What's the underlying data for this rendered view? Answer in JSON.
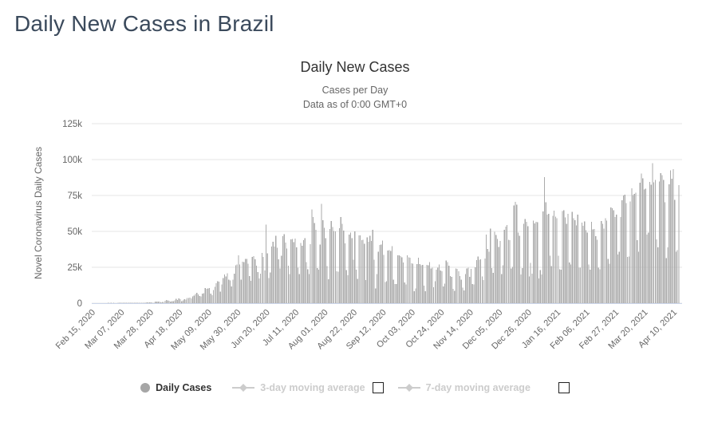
{
  "page": {
    "title": "Daily New Cases in Brazil"
  },
  "chart": {
    "title": "Daily New Cases",
    "subtitle_line1": "Cases per Day",
    "subtitle_line2": "Data as of 0:00 GMT+0",
    "y_axis_title": "Novel Coronavirus Daily Cases",
    "legend": {
      "daily_cases_label": "Daily Cases",
      "ma3_label": "3-day moving average",
      "ma7_label": "7-day moving average"
    },
    "colors": {
      "bar": "#aaaaaa",
      "grid": "#e6e6e6",
      "axis_line": "#ccd6eb",
      "tick_text": "#666666",
      "axis_title_text": "#666666",
      "title_text": "#333333",
      "page_title_text": "#3b4a5c",
      "disabled_legend": "#cccccc",
      "legend_marker": "#a6a6a6"
    }
  },
  "chart_data": {
    "type": "bar",
    "title": "Daily New Cases",
    "subtitle": "Cases per Day — Data as of 0:00 GMT+0",
    "xlabel": "",
    "ylabel": "Novel Coronavirus Daily Cases",
    "ylim": [
      0,
      130000
    ],
    "grid": true,
    "legend_position": "bottom",
    "start_date": "2020-02-15",
    "x_tick_interval_days": 21,
    "x_tick_labels": [
      "Feb 15, 2020",
      "Mar 07, 2020",
      "Mar 28, 2020",
      "Apr 18, 2020",
      "May 09, 2020",
      "May 30, 2020",
      "Jun 20, 2020",
      "Jul 11, 2020",
      "Aug 01, 2020",
      "Aug 22, 2020",
      "Sep 12, 2020",
      "Oct 03, 2020",
      "Oct 24, 2020",
      "Nov 14, 2020",
      "Dec 05, 2020",
      "Dec 26, 2020",
      "Jan 16, 2021",
      "Feb 06, 2021",
      "Feb 27, 2021",
      "Mar 20, 2021",
      "Apr 10, 2021"
    ],
    "y_ticks": [
      "0",
      "25k",
      "50k",
      "75k",
      "100k",
      "125k"
    ],
    "y_tick_values": [
      0,
      25000,
      50000,
      75000,
      100000,
      125000
    ],
    "series": [
      {
        "name": "Daily Cases",
        "values": [
          0,
          0,
          0,
          0,
          0,
          0,
          0,
          0,
          0,
          0,
          0,
          1,
          0,
          1,
          0,
          2,
          0,
          0,
          1,
          3,
          5,
          6,
          5,
          6,
          9,
          18,
          27,
          36,
          25,
          70,
          39,
          57,
          137,
          186,
          283,
          224,
          167,
          345,
          310,
          482,
          502,
          486,
          487,
          352,
          323,
          1138,
          1119,
          1074,
          1146,
          463,
          852,
          926,
          1661,
          2210,
          1930,
          1781,
          1089,
          1442,
          1261,
          1832,
          3058,
          2105,
          3257,
          2917,
          1389,
          2055,
          2678,
          2498,
          3735,
          3503,
          3932,
          3379,
          4613,
          5385,
          6276,
          7218,
          6209,
          4970,
          4588,
          6633,
          6935,
          10503,
          9888,
          10222,
          10611,
          6760,
          5632,
          9258,
          11385,
          13944,
          15305,
          14919,
          7938,
          13140,
          17408,
          19951,
          18508,
          20803,
          16508,
          15813,
          11687,
          16324,
          20599,
          26417,
          26928,
          33274,
          27075,
          16409,
          28936,
          28633,
          30925,
          30830,
          27368,
          18912,
          15654,
          32091,
          32913,
          30465,
          25982,
          21704,
          17110,
          20647,
          34918,
          32188,
          22765,
          54771,
          34666,
          17459,
          21432,
          39436,
          42725,
          39483,
          46860,
          38693,
          30476,
          24052,
          33100,
          46712,
          48105,
          42223,
          37923,
          26051,
          20229,
          44571,
          44602,
          42619,
          45048,
          39023,
          24831,
          20286,
          41857,
          39924,
          43829,
          45403,
          28532,
          23529,
          20257,
          41008,
          65339,
          59961,
          55891,
          51147,
          24578,
          23284,
          40816,
          69074,
          57837,
          52383,
          45392,
          25800,
          16641,
          51603,
          57152,
          53139,
          50230,
          49970,
          22213,
          22048,
          52160,
          60091,
          55155,
          50644,
          41576,
          23101,
          19373,
          47784,
          49298,
          45323,
          30355,
          50032,
          23421,
          17078,
          47134,
          47161,
          43773,
          44235,
          41350,
          16158,
          45961,
          42659,
          46934,
          43272,
          51194,
          30168,
          10273,
          20156,
          35816,
          40557,
          40725,
          43718,
          33523,
          14768,
          15155,
          36653,
          36820,
          36303,
          39797,
          16389,
          13439,
          13429,
          33281,
          33413,
          32817,
          31911,
          28378,
          14318,
          13155,
          33269,
          32058,
          31553,
          27750,
          27444,
          8456,
          10273,
          27235,
          31553,
          27182,
          26310,
          26749,
          12342,
          8429,
          26755,
          26463,
          28523,
          24062,
          24818,
          10982,
          15383,
          23227,
          24858,
          26979,
          22914,
          22282,
          11717,
          13493,
          29787,
          28629,
          26106,
          18947,
          18209,
          10100,
          8501,
          24125,
          23976,
          22094,
          18862,
          16316,
          10917,
          8968,
          20341,
          24197,
          24806,
          18262,
          23976,
          13345,
          12969,
          25012,
          30026,
          32622,
          30412,
          30629,
          18615,
          16207,
          31100,
          47898,
          37672,
          35919,
          51922,
          24468,
          21138,
          49863,
          47521,
          44861,
          39031,
          43209,
          20371,
          26363,
          51088,
          53453,
          54428,
          44140,
          43900,
          24130,
          25193,
          68135,
          70574,
          68633,
          49241,
          46839,
          19907,
          24382,
          55202,
          58718,
          56773,
          53519,
          18479,
          28015,
          20548,
          57616,
          55649,
          56648,
          56500,
          17341,
          23134,
          20006,
          64025,
          87843,
          70238,
          61567,
          62290,
          33040,
          25822,
          60899,
          64385,
          60161,
          59118,
          33027,
          23671,
          23288,
          64126,
          64769,
          59826,
          55398,
          62334,
          28323,
          26816,
          63520,
          59119,
          57712,
          54096,
          61567,
          24591,
          24759,
          56002,
          54022,
          56873,
          50872,
          49288,
          26845,
          23264,
          56766,
          51486,
          51546,
          46655,
          44299,
          24759,
          23671,
          57305,
          55271,
          51879,
          59047,
          57472,
          30891,
          27436,
          66588,
          65998,
          64862,
          59925,
          61602,
          34027,
          35742,
          59925,
          71704,
          75102,
          75495,
          69609,
          32321,
          32521,
          70764,
          79876,
          75412,
          76178,
          76976,
          43812,
          35952,
          83926,
          90303,
          86982,
          79069,
          79719,
          47774,
          49293,
          84494,
          82493,
          97586,
          84245,
          85948,
          44326,
          38927,
          84698,
          90638,
          89200,
          85714,
          70238,
          31359,
          38866,
          82869,
          92625,
          86652,
          93317,
          71832,
          35785,
          37017,
          82186
        ]
      }
    ]
  }
}
